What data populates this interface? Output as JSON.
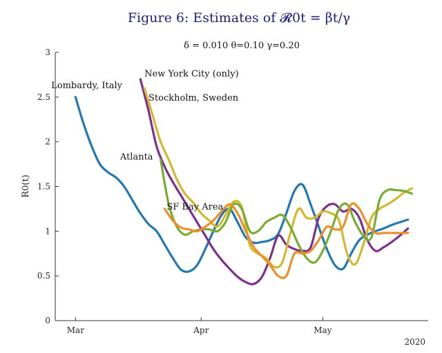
{
  "figure": {
    "title": "Figure 6: Estimates of 𝓡0t = βt/γ",
    "params": "δ = 0.010   θ=0.10   γ=0.20",
    "year_label": "2020"
  },
  "chart_data": {
    "type": "line",
    "title": "Figure 6: Estimates of 𝓡0t = βt/γ",
    "xlabel": "",
    "ylabel": "R0(t)",
    "x_units": "days since Mar 1 2020",
    "xlim": [
      -5,
      87
    ],
    "ylim": [
      0,
      3
    ],
    "yticks": [
      0,
      0.5,
      1,
      1.5,
      2,
      2.5,
      3
    ],
    "ytick_labels": [
      "0",
      "0.5",
      "1",
      "1.5",
      "2",
      "2.5",
      "3"
    ],
    "xticks": [
      0,
      31,
      61
    ],
    "xtick_labels": [
      "Mar",
      "Apr",
      "May"
    ],
    "grid": false,
    "series": [
      {
        "name": "Lombardy, Italy",
        "color": "#1f77b4",
        "x": [
          0,
          2,
          4,
          6,
          8,
          10,
          12,
          14,
          16,
          18,
          20,
          22,
          24,
          26,
          28,
          30,
          32,
          34,
          36,
          38,
          40,
          42,
          44,
          46,
          48,
          50,
          52,
          54,
          56,
          58,
          60,
          62,
          64,
          66,
          68,
          70,
          72,
          74,
          76,
          78,
          80,
          82
        ],
        "y": [
          2.5,
          2.2,
          1.95,
          1.75,
          1.66,
          1.6,
          1.5,
          1.35,
          1.2,
          1.08,
          1.0,
          0.85,
          0.7,
          0.57,
          0.55,
          0.62,
          0.8,
          1.0,
          1.18,
          1.25,
          1.1,
          0.93,
          0.87,
          0.88,
          0.9,
          0.97,
          1.2,
          1.45,
          1.52,
          1.3,
          1.05,
          0.8,
          0.62,
          0.58,
          0.75,
          0.9,
          0.96,
          1.0,
          1.03,
          1.07,
          1.1,
          1.13
        ]
      },
      {
        "name": "New York City (only)",
        "color": "#7e2f8e",
        "x": [
          16,
          18,
          20,
          22,
          24,
          26,
          28,
          30,
          32,
          34,
          36,
          38,
          40,
          42,
          44,
          46,
          48,
          50,
          52,
          54,
          56,
          58,
          60,
          62,
          64,
          66,
          68,
          70,
          72,
          74,
          76,
          78,
          80,
          82
        ],
        "y": [
          2.7,
          2.35,
          1.95,
          1.72,
          1.55,
          1.4,
          1.25,
          1.1,
          0.95,
          0.8,
          0.68,
          0.58,
          0.49,
          0.43,
          0.41,
          0.49,
          0.7,
          0.95,
          0.85,
          0.8,
          0.78,
          0.82,
          1.15,
          1.28,
          1.3,
          1.22,
          1.25,
          1.15,
          0.9,
          0.78,
          0.82,
          0.88,
          0.95,
          1.03
        ]
      },
      {
        "name": "Stockholm, Sweden",
        "color": "#d4b82c",
        "x": [
          17,
          19,
          21,
          23,
          25,
          27,
          29,
          31,
          33,
          35,
          37,
          39,
          41,
          43,
          45,
          47,
          49,
          51,
          53,
          55,
          57,
          59,
          61,
          63,
          65,
          67,
          69,
          71,
          73,
          75,
          77,
          79,
          81,
          83
        ],
        "y": [
          2.6,
          2.3,
          2.0,
          1.8,
          1.58,
          1.42,
          1.32,
          1.2,
          1.12,
          1.05,
          1.18,
          1.33,
          1.27,
          0.85,
          0.75,
          0.7,
          0.6,
          0.65,
          0.98,
          1.25,
          1.15,
          1.15,
          1.22,
          1.2,
          1.12,
          0.75,
          0.63,
          0.85,
          1.15,
          1.25,
          1.3,
          1.36,
          1.43,
          1.48
        ]
      },
      {
        "name": "Atlanta",
        "color": "#77ac30",
        "x": [
          21,
          23,
          25,
          27,
          29,
          31,
          33,
          35,
          37,
          39,
          41,
          43,
          45,
          47,
          49,
          51,
          53,
          55,
          57,
          59,
          61,
          63,
          65,
          67,
          69,
          71,
          73,
          75,
          77,
          79,
          81,
          83
        ],
        "y": [
          1.8,
          1.3,
          1.05,
          0.96,
          1.0,
          1.02,
          1.02,
          1.0,
          1.1,
          1.3,
          1.25,
          1.0,
          1.0,
          1.1,
          1.15,
          1.18,
          1.05,
          0.85,
          0.7,
          0.65,
          0.78,
          1.0,
          1.25,
          1.3,
          1.1,
          0.95,
          0.93,
          1.35,
          1.46,
          1.46,
          1.45,
          1.42
        ]
      },
      {
        "name": "SF Bay Area",
        "color": "#ee8e2a",
        "x": [
          22,
          24,
          26,
          28,
          30,
          32,
          34,
          36,
          38,
          40,
          42,
          44,
          46,
          48,
          50,
          52,
          54,
          56,
          58,
          60,
          62,
          64,
          66,
          68,
          70,
          72,
          74,
          76,
          78,
          80,
          82
        ],
        "y": [
          1.25,
          1.12,
          1.04,
          1.02,
          1.0,
          1.05,
          1.12,
          1.22,
          1.3,
          1.2,
          1.0,
          0.82,
          0.72,
          0.62,
          0.5,
          0.5,
          0.75,
          0.75,
          0.78,
          0.9,
          1.05,
          1.02,
          1.05,
          1.3,
          1.25,
          1.08,
          0.98,
          0.98,
          0.98,
          0.98,
          0.98
        ]
      }
    ],
    "annotations": [
      {
        "text": "Lombardy, Italy",
        "x": -6.0,
        "y": 2.6
      },
      {
        "text": "New York City (only)",
        "x": 17.0,
        "y": 2.73
      },
      {
        "text": "Stockholm, Sweden",
        "x": 18.0,
        "y": 2.46
      },
      {
        "text": "Atlanta",
        "x": 11.0,
        "y": 1.8
      },
      {
        "text": "SF Bay Area",
        "x": 22.5,
        "y": 1.24
      }
    ]
  }
}
